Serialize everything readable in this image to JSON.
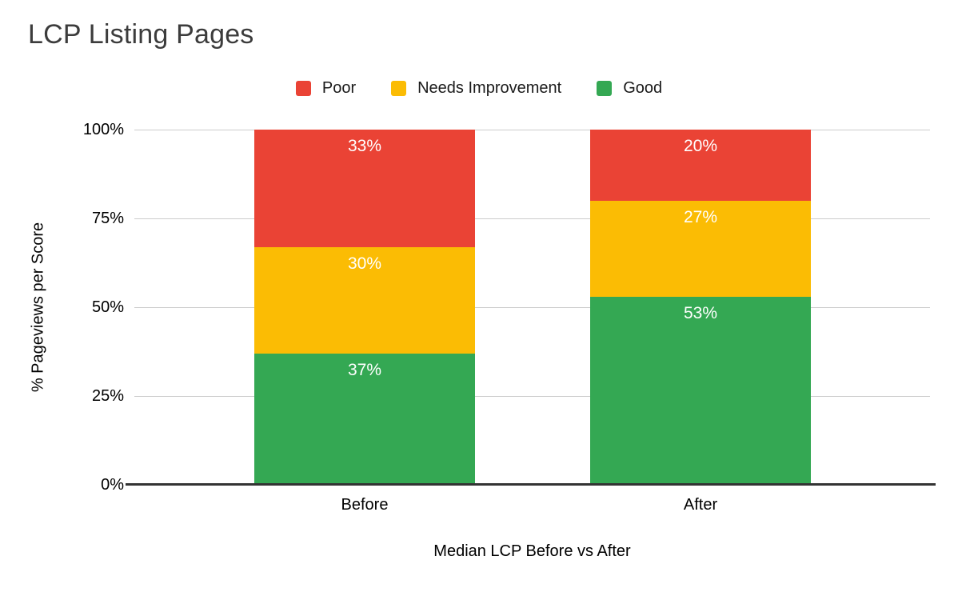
{
  "chart_data": {
    "type": "bar",
    "stacked": true,
    "orientation": "vertical",
    "title": "LCP Listing Pages",
    "xlabel": "Median LCP Before vs After",
    "ylabel": "% Pageviews per Score",
    "categories": [
      "Before",
      "After"
    ],
    "series": [
      {
        "name": "Poor",
        "color": "#EA4335",
        "values": [
          33,
          20
        ]
      },
      {
        "name": "Needs Improvement",
        "color": "#FBBC04",
        "values": [
          30,
          27
        ]
      },
      {
        "name": "Good",
        "color": "#34A853",
        "values": [
          37,
          53
        ]
      }
    ],
    "value_suffix": "%",
    "data_label_color": "#ffffff",
    "yticks": [
      "100%",
      "75%",
      "50%",
      "25%",
      "0%"
    ],
    "ylim": [
      0,
      100
    ],
    "grid": true,
    "gridline_color": "#cccccc",
    "axis_line_color": "#333333",
    "legend_position": "top",
    "background_color": "#ffffff",
    "title_color": "#3c3c3c"
  }
}
